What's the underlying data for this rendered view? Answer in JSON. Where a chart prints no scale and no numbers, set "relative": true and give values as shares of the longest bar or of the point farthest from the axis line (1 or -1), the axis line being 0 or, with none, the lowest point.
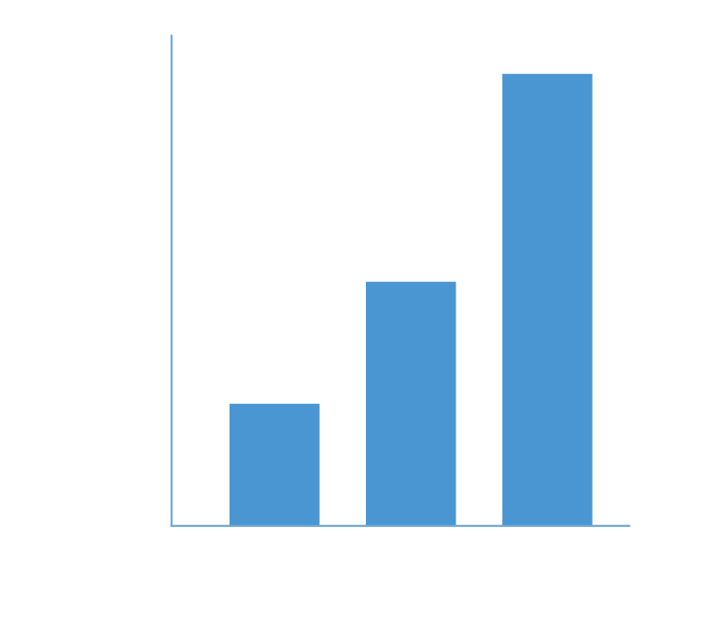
{
  "chart_data": {
    "type": "bar",
    "relative": true,
    "categories": [
      null,
      null,
      null
    ],
    "values": [
      0.27,
      0.54,
      1
    ],
    "color": "#4a96d2"
  }
}
